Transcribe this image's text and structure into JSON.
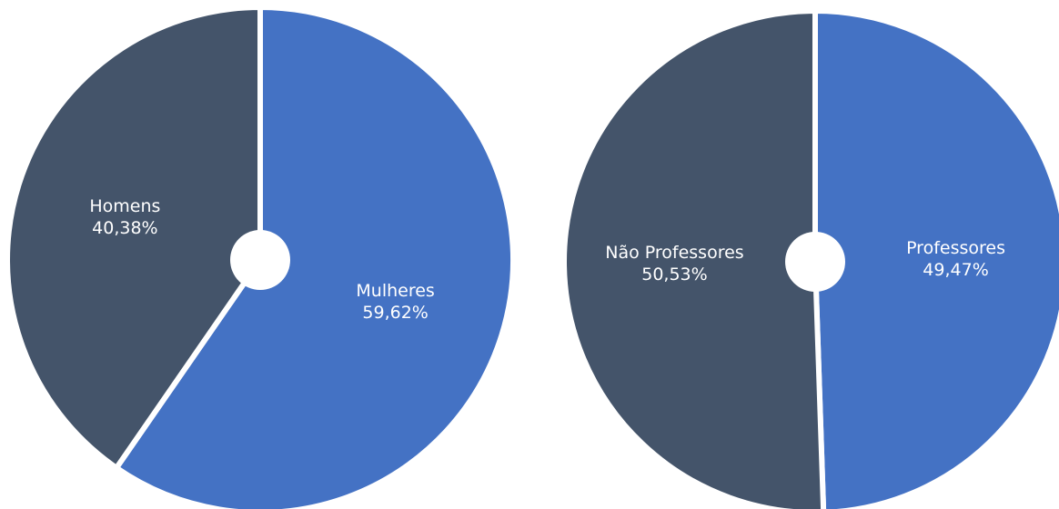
{
  "chart_data": [
    {
      "type": "pie",
      "categories": [
        "Mulheres",
        "Homens"
      ],
      "values": [
        59.62,
        40.38
      ],
      "value_labels": [
        "59,62%",
        "40,38%"
      ],
      "colors": [
        "#4472c4",
        "#44546a"
      ]
    },
    {
      "type": "pie",
      "categories": [
        "Professores",
        "Não Professores"
      ],
      "values": [
        49.47,
        50.53
      ],
      "value_labels": [
        "49,47%",
        "50,53%"
      ],
      "colors": [
        "#4472c4",
        "#44546a"
      ]
    }
  ]
}
